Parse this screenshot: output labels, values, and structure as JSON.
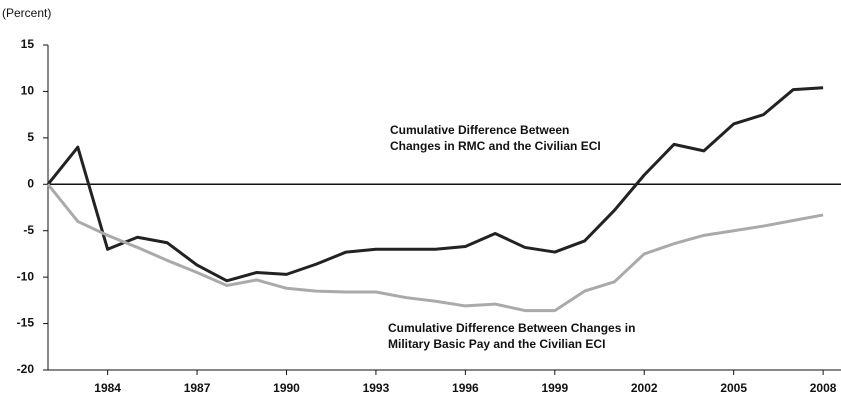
{
  "chart_data": {
    "type": "line",
    "ylabel": "(Percent)",
    "x": [
      1982,
      1983,
      1984,
      1985,
      1986,
      1987,
      1988,
      1989,
      1990,
      1991,
      1992,
      1993,
      1994,
      1995,
      1996,
      1997,
      1998,
      1999,
      2000,
      2001,
      2002,
      2003,
      2004,
      2005,
      2006,
      2007,
      2008
    ],
    "series": [
      {
        "color": "#222222",
        "values": [
          0,
          4,
          -7,
          -5.7,
          -6.3,
          -8.7,
          -10.4,
          -9.5,
          -9.7,
          -8.6,
          -7.3,
          -7,
          -7,
          -7,
          -6.7,
          -5.3,
          -6.8,
          -7.3,
          -6.1,
          -2.8,
          1,
          4.3,
          3.6,
          6.5,
          7.5,
          10.2,
          10.4
        ]
      },
      {
        "color": "#aaaaaa",
        "values": [
          0,
          -4,
          -5.5,
          -6.8,
          -8.2,
          -9.5,
          -10.9,
          -10.3,
          -11.2,
          -11.5,
          -11.6,
          -11.6,
          -12.2,
          -12.6,
          -13.1,
          -12.9,
          -13.6,
          -13.6,
          -11.5,
          -10.5,
          -7.5,
          -6.4,
          -5.5,
          -5,
          -4.5,
          -3.9,
          -3.3
        ]
      }
    ],
    "annotations": [
      [
        "Cumulative Difference Between",
        "Changes in RMC and the Civilian ECI"
      ],
      [
        "Cumulative Difference Between Changes in",
        "Military Basic Pay and the Civilian ECI"
      ]
    ],
    "xlim": [
      1982,
      2008.6
    ],
    "xticks": [
      1984,
      1987,
      1990,
      1993,
      1996,
      1999,
      2002,
      2005,
      2008
    ],
    "ylim": [
      -20,
      15
    ],
    "yticks": [
      -20,
      -15,
      -10,
      -5,
      0,
      5,
      10,
      15
    ]
  }
}
